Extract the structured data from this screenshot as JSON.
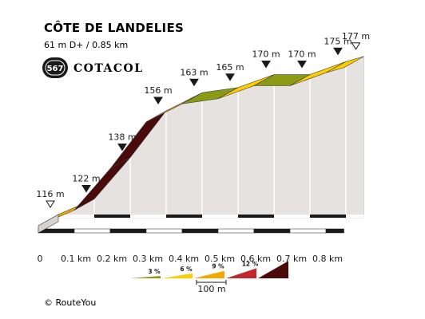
{
  "header": {
    "title": "CÔTE DE LANDELIES",
    "subtitle": "61 m D+ / 0.85 km",
    "badge_number": "567",
    "brand": "COTACOL"
  },
  "chart_data": {
    "type": "area",
    "x": [
      0,
      0.1,
      0.2,
      0.3,
      0.4,
      0.5,
      0.6,
      0.7,
      0.8,
      0.85
    ],
    "y": [
      116,
      122,
      138,
      156,
      163,
      165,
      170,
      170,
      175,
      177
    ],
    "point_labels": [
      "116 m",
      "122 m",
      "138 m",
      "156 m",
      "163 m",
      "165 m",
      "170 m",
      "170 m",
      "175 m",
      "177 m"
    ],
    "segment_slopes_pct": [
      6,
      16,
      18,
      7,
      2,
      5,
      0,
      5,
      4
    ],
    "segment_colors": [
      "#f5a800",
      "#4a0a0a",
      "#4a0a0a",
      "#f5a800",
      "#8a9a14",
      "#ffcc00",
      "#8a9a14",
      "#ffcc00",
      "#ffcc00"
    ],
    "x_tick_labels": [
      "0",
      "0.1 km",
      "0.2 km",
      "0.3 km",
      "0.4 km",
      "0.5 km",
      "0.6 km",
      "0.7 km",
      "0.8 km"
    ],
    "x_ticks": [
      0,
      0.1,
      0.2,
      0.3,
      0.4,
      0.5,
      0.6,
      0.7,
      0.8
    ],
    "xlim": [
      0,
      0.85
    ],
    "start_end_markers": "open-triangle",
    "intermediate_markers": "filled-triangle"
  },
  "legend": {
    "items": [
      {
        "label": "3 %",
        "color": "#8a9a14"
      },
      {
        "label": "6 %",
        "color": "#ffcc00"
      },
      {
        "label": "9 %",
        "color": "#f5a800"
      },
      {
        "label": "12 %",
        "color": "#c4262e"
      },
      {
        "label": "",
        "color": "#4a0a0a"
      }
    ],
    "scale_label": "100 m"
  },
  "footer": {
    "copyright": "©  RouteYou"
  }
}
